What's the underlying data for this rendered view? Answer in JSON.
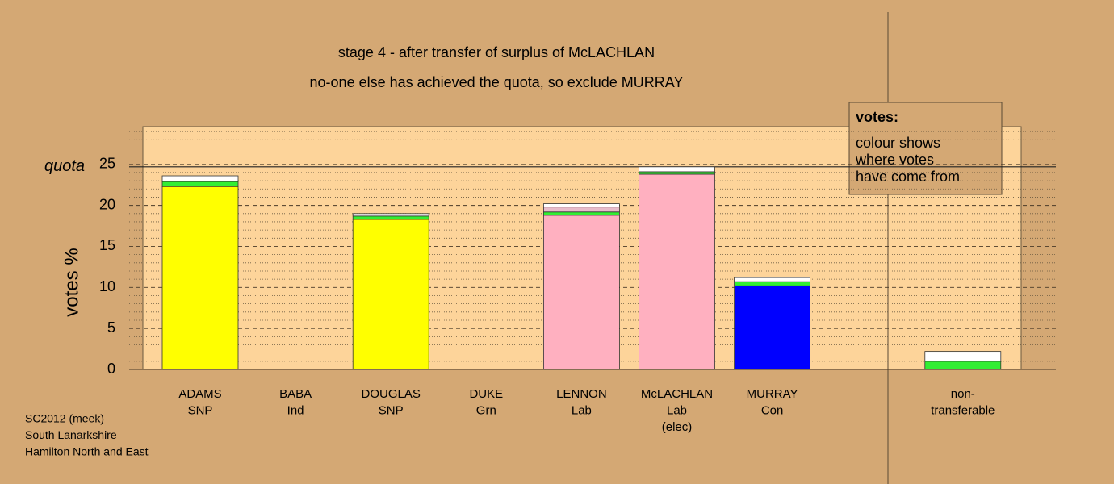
{
  "chart_data": {
    "type": "stacked-bar",
    "title": "stage 4 - after transfer of surplus of McLACHLAN",
    "subtitle": "no-one else has achieved the quota, so exclude MURRAY",
    "y_label": "votes %",
    "categories": [
      [
        "ADAMS",
        "SNP"
      ],
      [
        "BABA",
        "Ind"
      ],
      [
        "DOUGLAS",
        "SNP"
      ],
      [
        "DUKE",
        "Grn"
      ],
      [
        "LENNON",
        "Lab"
      ],
      [
        "McLACHLAN",
        "Lab",
        "(elec)"
      ],
      [
        "MURRAY",
        "Con"
      ],
      null,
      [
        "non-",
        "transferable"
      ]
    ],
    "series": [
      {
        "colors": [
          "#ffff00",
          "#ffff00",
          "#ffff00",
          "#33ee33",
          "#ffb0c0",
          "#ffb0c0",
          "#0000ff",
          null,
          "#ffff00"
        ],
        "values": [
          22.3,
          0,
          18.3,
          0,
          18.8,
          23.8,
          10.2,
          null,
          0
        ]
      },
      {
        "color": "#33ee33",
        "values": [
          0.6,
          0,
          0.4,
          0,
          0.4,
          0.3,
          0.5,
          null,
          1.0
        ]
      },
      {
        "color": "#e8bccb",
        "values": [
          0,
          0,
          0,
          0,
          0.6,
          0,
          0,
          null,
          0
        ]
      },
      {
        "color": "#ffffff",
        "values": [
          0.7,
          0,
          0.3,
          0,
          0.4,
          0.6,
          0.5,
          null,
          1.2
        ]
      }
    ],
    "ylim": [
      0,
      29.6
    ],
    "yticks": [
      0,
      5,
      10,
      15,
      20,
      25
    ],
    "minor_yticks": [
      1,
      2,
      3,
      4,
      6,
      7,
      8,
      9,
      11,
      12,
      13,
      14,
      16,
      17,
      18,
      19,
      21,
      22,
      23,
      24,
      26,
      27,
      28,
      29
    ],
    "quota": {
      "value": 24.7,
      "label": "quota"
    },
    "legend": {
      "title": "votes:",
      "lines": [
        "colour shows",
        "where votes",
        "have come from"
      ]
    },
    "footnote": [
      "SC2012 (meek)",
      "South Lanarkshire",
      "Hamilton North and East"
    ]
  }
}
